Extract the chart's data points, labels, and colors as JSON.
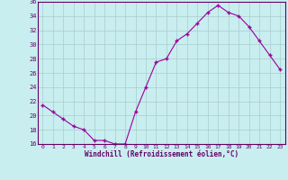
{
  "x": [
    0,
    1,
    2,
    3,
    4,
    5,
    6,
    7,
    8,
    9,
    10,
    11,
    12,
    13,
    14,
    15,
    16,
    17,
    18,
    19,
    20,
    21,
    22,
    23
  ],
  "y": [
    21.5,
    20.5,
    19.5,
    18.5,
    18.0,
    16.5,
    16.5,
    16.0,
    16.0,
    20.5,
    24.0,
    27.5,
    28.0,
    30.5,
    31.5,
    33.0,
    34.5,
    35.5,
    34.5,
    34.0,
    32.5,
    30.5,
    28.5,
    26.5
  ],
  "xlabel": "Windchill (Refroidissement éolien,°C)",
  "ylim": [
    16,
    36
  ],
  "xlim": [
    -0.5,
    23.5
  ],
  "yticks": [
    16,
    18,
    20,
    22,
    24,
    26,
    28,
    30,
    32,
    34,
    36
  ],
  "xticks": [
    0,
    1,
    2,
    3,
    4,
    5,
    6,
    7,
    8,
    9,
    10,
    11,
    12,
    13,
    14,
    15,
    16,
    17,
    18,
    19,
    20,
    21,
    22,
    23
  ],
  "line_color": "#990099",
  "marker": "+",
  "bg_color": "#c8eef0",
  "grid_color": "#aacccc",
  "label_color": "#660066",
  "tick_color": "#660066",
  "spine_color": "#660066"
}
